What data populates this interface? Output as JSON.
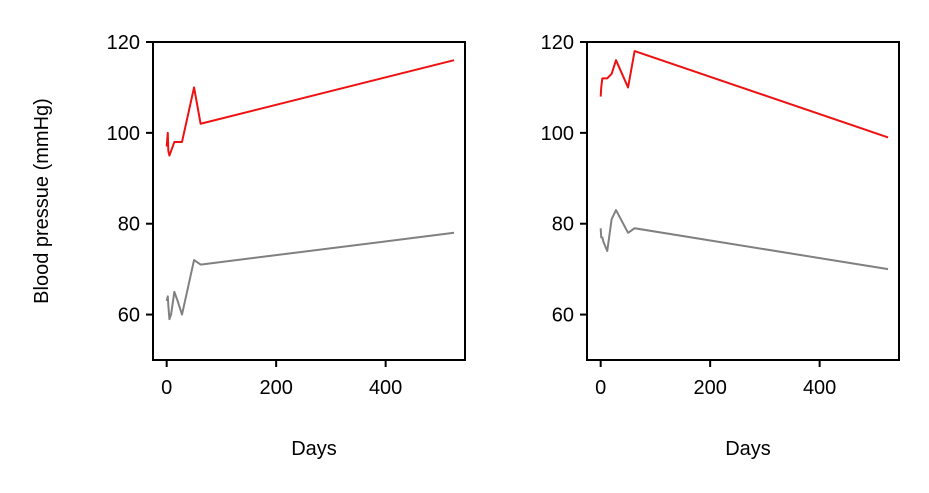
{
  "chart_data": [
    {
      "type": "line",
      "title": "",
      "xlabel": "Days",
      "ylabel": "Blood pressue (mmHg)",
      "xlim": [
        -25,
        545
      ],
      "ylim": [
        50,
        120
      ],
      "x_ticks": [
        0,
        200,
        400
      ],
      "x_tick_labels": [
        "0",
        "200",
        "400"
      ],
      "y_ticks": [
        60,
        80,
        100,
        120
      ],
      "y_tick_labels": [
        "60",
        "80",
        "100",
        "120"
      ],
      "grid": false,
      "series": [
        {
          "color": "#ee1111",
          "x": [
            0,
            2,
            3,
            5,
            8,
            14,
            20,
            28,
            50,
            62,
            525
          ],
          "y": [
            97,
            100,
            96,
            95,
            96,
            98,
            98,
            98,
            110,
            102,
            116
          ]
        },
        {
          "color": "#808080",
          "x": [
            0,
            2,
            3,
            5,
            8,
            14,
            20,
            28,
            50,
            62,
            525
          ],
          "y": [
            63,
            64,
            62,
            59,
            60,
            65,
            63,
            60,
            72,
            71,
            78
          ]
        }
      ]
    },
    {
      "type": "line",
      "title": "",
      "xlabel": "Days",
      "ylabel": "",
      "xlim": [
        -25,
        545
      ],
      "ylim": [
        50,
        120
      ],
      "x_ticks": [
        0,
        200,
        400
      ],
      "x_tick_labels": [
        "0",
        "200",
        "400"
      ],
      "y_ticks": [
        60,
        80,
        100,
        120
      ],
      "y_tick_labels": [
        "60",
        "80",
        "100",
        "120"
      ],
      "grid": false,
      "series": [
        {
          "color": "#ee1111",
          "x": [
            0,
            1,
            3,
            5,
            12,
            20,
            28,
            50,
            62,
            525
          ],
          "y": [
            108,
            110,
            112,
            112,
            112,
            113,
            116,
            110,
            118,
            99
          ]
        },
        {
          "color": "#808080",
          "x": [
            0,
            1,
            3,
            5,
            12,
            20,
            28,
            50,
            62,
            525
          ],
          "y": [
            79,
            77,
            77,
            76,
            74,
            81,
            83,
            78,
            79,
            70
          ]
        }
      ]
    }
  ]
}
